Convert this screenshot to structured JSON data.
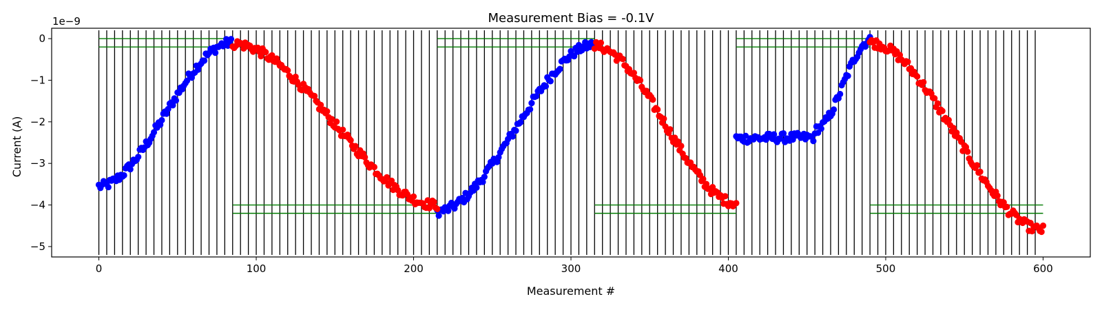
{
  "chart_data": {
    "type": "scatter",
    "title": "Measurement Bias = -0.1V",
    "xlabel": "Measurement #",
    "ylabel": "Current (A)",
    "y_scale_label": "1e−9",
    "y_multiplier": 1e-09,
    "xlim": [
      -30,
      630
    ],
    "ylim": [
      -5.25,
      0.25
    ],
    "xticks": [
      0,
      100,
      200,
      300,
      400,
      500,
      600
    ],
    "xtick_labels": [
      "0",
      "100",
      "200",
      "300",
      "400",
      "500",
      "600"
    ],
    "yticks": [
      0,
      -1,
      -2,
      -3,
      -4,
      -5
    ],
    "ytick_labels": [
      "0",
      "−1",
      "−2",
      "−3",
      "−4",
      "−5"
    ],
    "grid": false,
    "legend": "none",
    "colors": {
      "series_a": "#0000ff",
      "series_b": "#ff0000",
      "vlines": "#000000",
      "hlines": "#007a00"
    },
    "vlines": [
      0,
      5,
      10,
      15,
      20,
      25,
      30,
      35,
      40,
      45,
      50,
      55,
      60,
      65,
      70,
      75,
      80,
      85,
      90,
      95,
      100,
      105,
      110,
      115,
      120,
      125,
      130,
      135,
      140,
      145,
      150,
      155,
      160,
      165,
      170,
      175,
      180,
      185,
      190,
      195,
      200,
      205,
      210,
      215,
      220,
      225,
      230,
      235,
      240,
      245,
      250,
      255,
      260,
      265,
      270,
      275,
      280,
      285,
      290,
      295,
      300,
      305,
      310,
      315,
      320,
      325,
      330,
      335,
      340,
      345,
      350,
      355,
      360,
      365,
      370,
      375,
      380,
      385,
      390,
      395,
      400,
      405,
      410,
      415,
      420,
      425,
      430,
      435,
      440,
      445,
      450,
      455,
      460,
      465,
      470,
      475,
      480,
      485,
      490,
      495,
      500,
      505,
      510,
      515,
      520,
      525,
      530,
      535,
      540,
      545,
      550,
      555,
      560,
      565,
      570,
      575,
      580,
      585,
      590,
      595
    ],
    "hlines": [
      {
        "y": 0.0,
        "x0": 0,
        "x1": 85
      },
      {
        "y": -0.2,
        "x0": 0,
        "x1": 85
      },
      {
        "y": 0.0,
        "x0": 215,
        "x1": 315
      },
      {
        "y": -0.2,
        "x0": 215,
        "x1": 315
      },
      {
        "y": 0.0,
        "x0": 405,
        "x1": 490
      },
      {
        "y": -0.2,
        "x0": 405,
        "x1": 490
      },
      {
        "y": -4.0,
        "x0": 85,
        "x1": 215
      },
      {
        "y": -4.2,
        "x0": 85,
        "x1": 215
      },
      {
        "y": -4.0,
        "x0": 315,
        "x1": 405
      },
      {
        "y": -4.2,
        "x0": 315,
        "x1": 405
      },
      {
        "y": -4.0,
        "x0": 490,
        "x1": 600
      },
      {
        "y": -4.2,
        "x0": 490,
        "x1": 600
      }
    ],
    "series": [
      {
        "color": "#0000ff",
        "segments": [
          {
            "x0": 0,
            "x1": 84,
            "y0": -3.55,
            "y1": -0.1,
            "shape": "sigmoid"
          },
          {
            "x0": 215,
            "x1": 315,
            "y0": -4.15,
            "y1": -0.15,
            "shape": "sigmoid"
          },
          {
            "x0": 405,
            "x1": 490,
            "y0": -2.4,
            "y1": -0.05,
            "shape": "step"
          }
        ]
      },
      {
        "color": "#ff0000",
        "segments": [
          {
            "x0": 85,
            "x1": 215,
            "y0": -0.12,
            "y1": -4.0,
            "shape": "sigmoid"
          },
          {
            "x0": 315,
            "x1": 405,
            "y0": -0.18,
            "y1": -3.95,
            "shape": "sigmoid"
          },
          {
            "x0": 490,
            "x1": 600,
            "y0": -0.1,
            "y1": -4.6,
            "shape": "sigmoid"
          }
        ]
      }
    ]
  }
}
